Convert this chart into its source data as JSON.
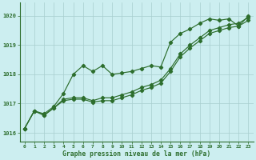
{
  "xlabel": "Graphe pression niveau de la mer (hPa)",
  "bg_color": "#cceef0",
  "line_color": "#2d6e2d",
  "grid_color": "#a8cece",
  "ylim": [
    1015.7,
    1020.45
  ],
  "xlim": [
    -0.5,
    23.5
  ],
  "yticks": [
    1016,
    1017,
    1018,
    1019,
    1020
  ],
  "xticks": [
    0,
    1,
    2,
    3,
    4,
    5,
    6,
    7,
    8,
    9,
    10,
    11,
    12,
    13,
    14,
    15,
    16,
    17,
    18,
    19,
    20,
    21,
    22,
    23
  ],
  "series1": [
    1016.15,
    1016.75,
    1016.65,
    1016.9,
    1017.35,
    1018.0,
    1018.3,
    1018.1,
    1018.3,
    1018.0,
    1018.05,
    1018.1,
    1018.2,
    1018.3,
    1018.25,
    1019.1,
    1019.4,
    1019.55,
    1019.75,
    1019.9,
    1019.85,
    1019.9,
    1019.65,
    1020.0
  ],
  "series2": [
    1016.15,
    1016.75,
    1016.6,
    1016.85,
    1017.15,
    1017.2,
    1017.2,
    1017.1,
    1017.2,
    1017.2,
    1017.3,
    1017.4,
    1017.55,
    1017.65,
    1017.8,
    1018.2,
    1018.7,
    1019.0,
    1019.25,
    1019.5,
    1019.6,
    1019.7,
    1019.75,
    1019.95
  ],
  "series3": [
    1016.15,
    1016.75,
    1016.6,
    1016.85,
    1017.1,
    1017.15,
    1017.15,
    1017.05,
    1017.1,
    1017.1,
    1017.2,
    1017.3,
    1017.45,
    1017.55,
    1017.7,
    1018.1,
    1018.6,
    1018.9,
    1019.15,
    1019.4,
    1019.5,
    1019.6,
    1019.65,
    1019.85
  ]
}
